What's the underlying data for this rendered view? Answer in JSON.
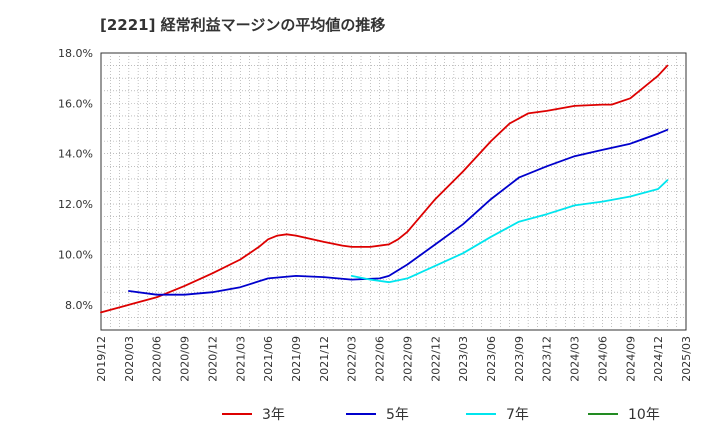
{
  "chart_data": {
    "type": "line",
    "title": "[2221]  経常利益マージンの平均値の推移",
    "xlabel": "",
    "ylabel": "",
    "ylim": [
      7.0,
      18.0
    ],
    "y_ticks": [
      "8.0%",
      "10.0%",
      "12.0%",
      "14.0%",
      "16.0%",
      "18.0%"
    ],
    "y_tick_values": [
      8,
      10,
      12,
      14,
      16,
      18
    ],
    "x_range": [
      "2019-12",
      "2025-03"
    ],
    "x_ticks": [
      "2019/12",
      "2020/03",
      "2020/06",
      "2020/09",
      "2020/12",
      "2021/03",
      "2021/06",
      "2021/09",
      "2021/12",
      "2022/03",
      "2022/06",
      "2022/09",
      "2022/12",
      "2023/03",
      "2023/06",
      "2023/09",
      "2023/12",
      "2024/03",
      "2024/06",
      "2024/09",
      "2024/12",
      "2025/03"
    ],
    "grid": true,
    "legend_position": "bottom",
    "series": [
      {
        "name": "3年",
        "color": "#dd0000",
        "points": [
          [
            "2019-12",
            7.7
          ],
          [
            "2020-03",
            8.0
          ],
          [
            "2020-06",
            8.3
          ],
          [
            "2020-09",
            8.75
          ],
          [
            "2020-12",
            9.25
          ],
          [
            "2021-03",
            9.8
          ],
          [
            "2021-05",
            10.3
          ],
          [
            "2021-06",
            10.6
          ],
          [
            "2021-07",
            10.75
          ],
          [
            "2021-08",
            10.8
          ],
          [
            "2021-09",
            10.75
          ],
          [
            "2021-12",
            10.5
          ],
          [
            "2022-02",
            10.35
          ],
          [
            "2022-03",
            10.3
          ],
          [
            "2022-05",
            10.3
          ],
          [
            "2022-07",
            10.4
          ],
          [
            "2022-08",
            10.6
          ],
          [
            "2022-09",
            10.9
          ],
          [
            "2022-12",
            12.2
          ],
          [
            "2023-03",
            13.3
          ],
          [
            "2023-06",
            14.5
          ],
          [
            "2023-08",
            15.2
          ],
          [
            "2023-10",
            15.6
          ],
          [
            "2023-12",
            15.7
          ],
          [
            "2024-03",
            15.9
          ],
          [
            "2024-06",
            15.95
          ],
          [
            "2024-07",
            15.95
          ],
          [
            "2024-09",
            16.2
          ],
          [
            "2024-12",
            17.1
          ],
          [
            "2025-01",
            17.5
          ]
        ]
      },
      {
        "name": "5年",
        "color": "#0000cc",
        "points": [
          [
            "2020-03",
            8.55
          ],
          [
            "2020-06",
            8.4
          ],
          [
            "2020-09",
            8.4
          ],
          [
            "2020-12",
            8.5
          ],
          [
            "2021-03",
            8.7
          ],
          [
            "2021-06",
            9.05
          ],
          [
            "2021-09",
            9.15
          ],
          [
            "2021-12",
            9.1
          ],
          [
            "2022-03",
            9.0
          ],
          [
            "2022-06",
            9.05
          ],
          [
            "2022-07",
            9.15
          ],
          [
            "2022-09",
            9.6
          ],
          [
            "2022-12",
            10.4
          ],
          [
            "2023-03",
            11.2
          ],
          [
            "2023-06",
            12.2
          ],
          [
            "2023-09",
            13.05
          ],
          [
            "2023-12",
            13.5
          ],
          [
            "2024-03",
            13.9
          ],
          [
            "2024-06",
            14.15
          ],
          [
            "2024-09",
            14.4
          ],
          [
            "2024-12",
            14.8
          ],
          [
            "2025-01",
            14.95
          ]
        ]
      },
      {
        "name": "7年",
        "color": "#00e5ee",
        "points": [
          [
            "2022-03",
            9.15
          ],
          [
            "2022-05",
            9.0
          ],
          [
            "2022-07",
            8.9
          ],
          [
            "2022-09",
            9.05
          ],
          [
            "2022-12",
            9.55
          ],
          [
            "2023-03",
            10.05
          ],
          [
            "2023-06",
            10.7
          ],
          [
            "2023-09",
            11.3
          ],
          [
            "2023-12",
            11.6
          ],
          [
            "2024-03",
            11.95
          ],
          [
            "2024-06",
            12.1
          ],
          [
            "2024-09",
            12.3
          ],
          [
            "2024-12",
            12.6
          ],
          [
            "2025-01",
            12.95
          ]
        ]
      },
      {
        "name": "10年",
        "color": "#228b22",
        "points": []
      }
    ]
  }
}
